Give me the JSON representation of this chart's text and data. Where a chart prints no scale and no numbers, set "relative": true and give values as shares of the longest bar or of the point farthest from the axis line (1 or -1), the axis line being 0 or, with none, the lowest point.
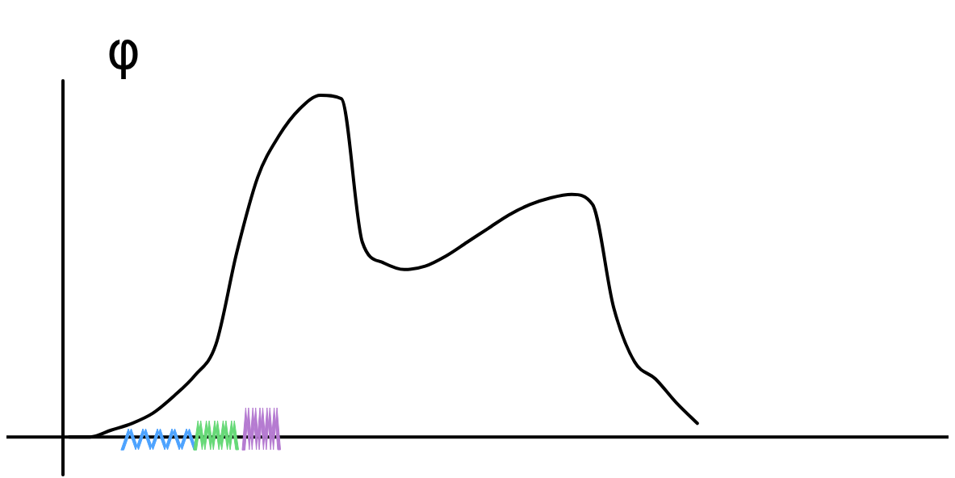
{
  "chart_data": {
    "type": "line",
    "relative": true,
    "ylabel": "φ",
    "color": "#000000",
    "marker": "none",
    "line_style": "solid",
    "categories": [
      null,
      null,
      null,
      null,
      null,
      null,
      null,
      null,
      null,
      null,
      null,
      null,
      null,
      null,
      null,
      null,
      null,
      null,
      null,
      null,
      null,
      null,
      null,
      null,
      null,
      null,
      null,
      null,
      null,
      null,
      null
    ],
    "values": [
      0,
      0,
      0.02,
      0.04,
      0.07,
      0.12,
      0.18,
      0.27,
      0.54,
      0.76,
      0.88,
      0.96,
      1,
      0.99,
      0.57,
      0.51,
      0.49,
      0.5,
      0.53,
      0.57,
      0.61,
      0.65,
      0.68,
      0.7,
      0.71,
      0.68,
      0.38,
      0.22,
      0.17,
      0.1,
      0.04
    ]
  }
}
